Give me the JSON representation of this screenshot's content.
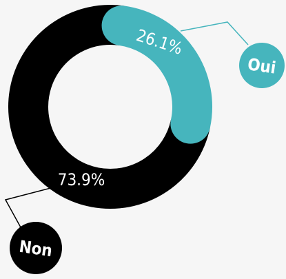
{
  "chart_data": {
    "type": "pie",
    "categories": [
      "Oui",
      "Non"
    ],
    "values": [
      26.1,
      73.9
    ],
    "value_labels": [
      "26.1%",
      "73.9%"
    ],
    "colors": [
      "#46b5bd",
      "#000000"
    ]
  }
}
